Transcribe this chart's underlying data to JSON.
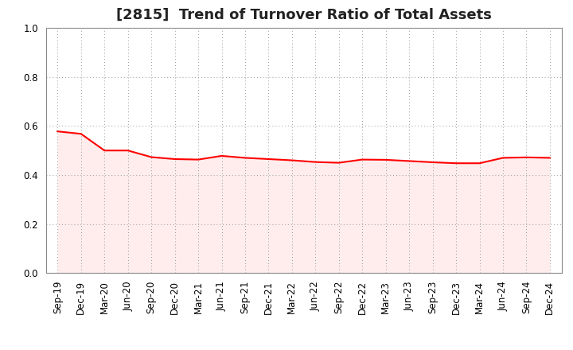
{
  "title": "[2815]  Trend of Turnover Ratio of Total Assets",
  "x_labels": [
    "Sep-19",
    "Dec-19",
    "Mar-20",
    "Jun-20",
    "Sep-20",
    "Dec-20",
    "Mar-21",
    "Jun-21",
    "Sep-21",
    "Dec-21",
    "Mar-22",
    "Jun-22",
    "Sep-22",
    "Dec-22",
    "Mar-23",
    "Jun-23",
    "Sep-23",
    "Dec-23",
    "Mar-24",
    "Jun-24",
    "Sep-24",
    "Dec-24"
  ],
  "values": [
    0.578,
    0.568,
    0.5,
    0.5,
    0.473,
    0.465,
    0.463,
    0.478,
    0.47,
    0.465,
    0.46,
    0.453,
    0.45,
    0.463,
    0.462,
    0.457,
    0.452,
    0.448,
    0.448,
    0.47,
    0.472,
    0.47
  ],
  "line_color": "#ff0000",
  "fill_color": "#ffcccc",
  "fill_alpha": 0.35,
  "ylim": [
    0.0,
    1.0
  ],
  "yticks": [
    0.0,
    0.2,
    0.4,
    0.6,
    0.8,
    1.0
  ],
  "background_color": "#ffffff",
  "grid_color": "#999999",
  "title_fontsize": 13,
  "tick_fontsize": 8.5,
  "line_width": 1.5
}
